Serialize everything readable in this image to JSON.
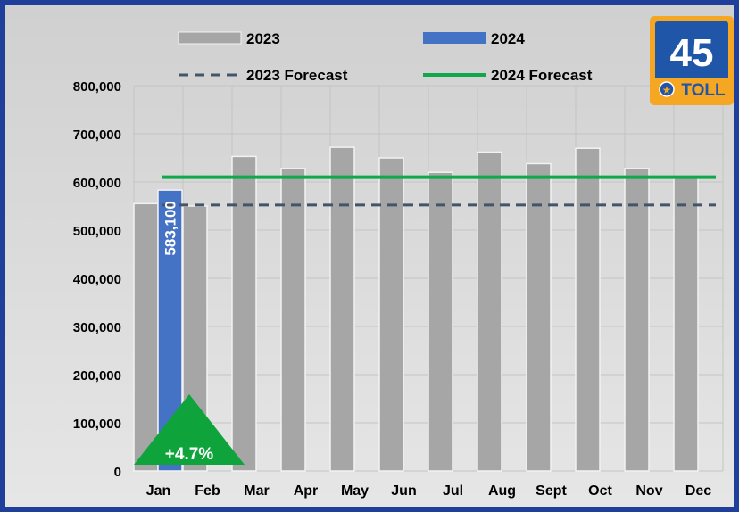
{
  "colors": {
    "bar_2023": "#a6a6a6",
    "bar_2024": "#4472c4",
    "forecast_2023": "#44546a",
    "forecast_2024": "#10a84a",
    "frame": "#1f3f9a",
    "plot_bg": "#d9d9d9",
    "badge_green": "#0fa33b",
    "shield_blue": "#1f56a8",
    "shield_orange": "#f5a623"
  },
  "badge": {
    "route_number": "45",
    "route_label": "TOLL",
    "icon": "toll-road-shield-icon"
  },
  "change_badge": {
    "text": "+4.7%",
    "icon": "up-triangle-icon"
  },
  "chart_data": {
    "type": "bar",
    "categories": [
      "Jan",
      "Feb",
      "Mar",
      "Apr",
      "May",
      "Jun",
      "Jul",
      "Aug",
      "Sept",
      "Oct",
      "Nov",
      "Dec"
    ],
    "series": [
      {
        "name": "2023",
        "values": [
          555000,
          550000,
          653000,
          628000,
          672000,
          650000,
          620000,
          662000,
          638000,
          670000,
          628000,
          612000
        ]
      },
      {
        "name": "2024",
        "values": [
          583100,
          null,
          null,
          null,
          null,
          null,
          null,
          null,
          null,
          null,
          null,
          null
        ],
        "data_labels": [
          "583,100"
        ]
      }
    ],
    "lines": [
      {
        "name": "2023 Forecast",
        "value": 552000,
        "style": "dashed"
      },
      {
        "name": "2024 Forecast",
        "value": 610000,
        "style": "solid"
      }
    ],
    "ylim": [
      0,
      800000
    ],
    "yticks": [
      0,
      100000,
      200000,
      300000,
      400000,
      500000,
      600000,
      700000,
      800000
    ],
    "ytick_labels": [
      "0",
      "100,000",
      "200,000",
      "300,000",
      "400,000",
      "500,000",
      "600,000",
      "700,000",
      "800,000"
    ],
    "title": "",
    "xlabel": "",
    "ylabel": "",
    "grid": true,
    "legend_position": "top"
  }
}
